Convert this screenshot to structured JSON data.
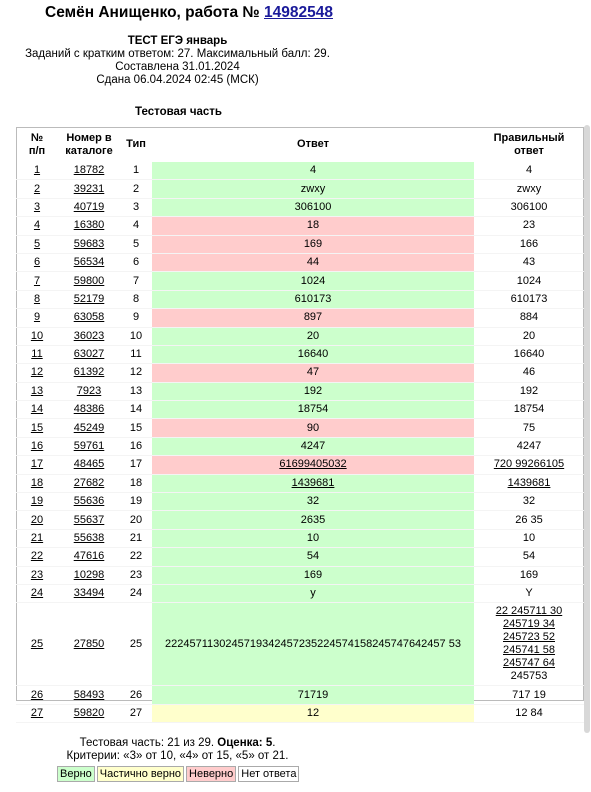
{
  "header": {
    "title_prefix": "Семён Анищенко, работа №",
    "work_number": "14982548",
    "test_name": "ТЕСТ ЕГЭ январь",
    "tasks_info": "Заданий с кратким ответом: 27. Максимальный балл: 29.",
    "compiled": "Составлена 31.01.2024",
    "submitted": "Сдана 06.04.2024 02:45 (МСК)"
  },
  "section_title": "Тестовая часть",
  "table": {
    "headers": {
      "num_1": "№",
      "num_2": "п/п",
      "catalog_1": "Номер в",
      "catalog_2": "каталоге",
      "type": "Тип",
      "answer": "Ответ",
      "correct_1": "Правильный",
      "correct_2": "ответ"
    },
    "rows": [
      {
        "n": "1",
        "catalog": "18782",
        "type": "1",
        "answer": "4",
        "correct": "4",
        "status": "good"
      },
      {
        "n": "2",
        "catalog": "39231",
        "type": "2",
        "answer": "zwxy",
        "correct": "zwxy",
        "status": "good"
      },
      {
        "n": "3",
        "catalog": "40719",
        "type": "3",
        "answer": "306100",
        "correct": "306100",
        "status": "good"
      },
      {
        "n": "4",
        "catalog": "16380",
        "type": "4",
        "answer": "18",
        "correct": "23",
        "status": "bad"
      },
      {
        "n": "5",
        "catalog": "59683",
        "type": "5",
        "answer": "169",
        "correct": "166",
        "status": "bad"
      },
      {
        "n": "6",
        "catalog": "56534",
        "type": "6",
        "answer": "44",
        "correct": "43",
        "status": "bad"
      },
      {
        "n": "7",
        "catalog": "59800",
        "type": "7",
        "answer": "1024",
        "correct": "1024",
        "status": "good"
      },
      {
        "n": "8",
        "catalog": "52179",
        "type": "8",
        "answer": "610173",
        "correct": "610173",
        "status": "good"
      },
      {
        "n": "9",
        "catalog": "63058",
        "type": "9",
        "answer": "897",
        "correct": "884",
        "status": "bad"
      },
      {
        "n": "10",
        "catalog": "36023",
        "type": "10",
        "answer": "20",
        "correct": "20",
        "status": "good"
      },
      {
        "n": "11",
        "catalog": "63027",
        "type": "11",
        "answer": "16640",
        "correct": "16640",
        "status": "good"
      },
      {
        "n": "12",
        "catalog": "61392",
        "type": "12",
        "answer": "47",
        "correct": "46",
        "status": "bad"
      },
      {
        "n": "13",
        "catalog": "7923",
        "type": "13",
        "answer": "192",
        "correct": "192",
        "status": "good"
      },
      {
        "n": "14",
        "catalog": "48386",
        "type": "14",
        "answer": "18754",
        "correct": "18754",
        "status": "good"
      },
      {
        "n": "15",
        "catalog": "45249",
        "type": "15",
        "answer": "90",
        "correct": "75",
        "status": "bad"
      },
      {
        "n": "16",
        "catalog": "59761",
        "type": "16",
        "answer": "4247",
        "correct": "4247",
        "status": "good"
      },
      {
        "n": "17",
        "catalog": "48465",
        "type": "17",
        "answer": "61699405032",
        "correct": "720 99266105",
        "status": "bad",
        "answer_link": true,
        "correct_link": true
      },
      {
        "n": "18",
        "catalog": "27682",
        "type": "18",
        "answer": "1439681",
        "correct": "1439681",
        "status": "good",
        "answer_link": true,
        "correct_link": true
      },
      {
        "n": "19",
        "catalog": "55636",
        "type": "19",
        "answer": "32",
        "correct": "32",
        "status": "good"
      },
      {
        "n": "20",
        "catalog": "55637",
        "type": "20",
        "answer": "2635",
        "correct": "26 35",
        "status": "good"
      },
      {
        "n": "21",
        "catalog": "55638",
        "type": "21",
        "answer": "10",
        "correct": "10",
        "status": "good"
      },
      {
        "n": "22",
        "catalog": "47616",
        "type": "22",
        "answer": "54",
        "correct": "54",
        "status": "good"
      },
      {
        "n": "23",
        "catalog": "10298",
        "type": "23",
        "answer": "169",
        "correct": "169",
        "status": "good"
      },
      {
        "n": "24",
        "catalog": "33494",
        "type": "24",
        "answer": "y",
        "correct": "Y",
        "status": "good"
      },
      {
        "n": "25",
        "catalog": "27850",
        "type": "25",
        "answer": "2224571130245719342457235224574158245747642457 53",
        "correct_lines": [
          "22 245711 30",
          "245719 34",
          "245723 52",
          "245741 58",
          "245747 64",
          "245753"
        ],
        "correct_link_lines": 5,
        "status": "good",
        "tall": true
      },
      {
        "n": "26",
        "catalog": "58493",
        "type": "26",
        "answer": "71719",
        "correct": "717 19",
        "status": "good"
      },
      {
        "n": "27",
        "catalog": "59820",
        "type": "27",
        "answer": "12",
        "correct": "12 84",
        "status": "partial"
      }
    ]
  },
  "summary": {
    "line1_prefix": "Тестовая часть: 21 из 29.",
    "grade_label": "Оценка:",
    "grade_value": "5",
    "line1_suffix": ".",
    "criteria": "Критерии: «3» от 10, «4» от 15, «5» от 21."
  },
  "legend": {
    "good": "Верно",
    "partial": "Частично верно",
    "bad": "Неверно",
    "none": "Нет ответа",
    "colors": {
      "good": "#ccffcc",
      "partial": "#ffffcc",
      "bad": "#ffcccc",
      "none": "#ffffff"
    }
  }
}
